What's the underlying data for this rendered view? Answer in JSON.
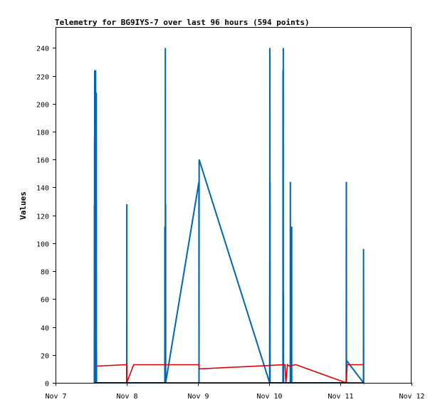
{
  "chart_data": {
    "type": "line",
    "title": "Telemetry for BG9IYS-7 over last 96 hours (594 points)",
    "xlabel": "",
    "ylabel": "Values",
    "xlim": [
      "2023-11-07",
      "2023-11-12"
    ],
    "ylim": [
      0,
      255
    ],
    "x_ticks": [
      "Nov 7",
      "Nov 8",
      "Nov 9",
      "Nov 10",
      "Nov 11",
      "Nov 12"
    ],
    "y_ticks": [
      0,
      20,
      40,
      60,
      80,
      100,
      120,
      140,
      160,
      180,
      200,
      220,
      240
    ],
    "grid": false,
    "legend": "none",
    "series": [
      {
        "color": "#0066b3",
        "points": [
          [
            "2023-11-07T13:05",
            0
          ],
          [
            "2023-11-07T13:06",
            128
          ],
          [
            "2023-11-07T13:07",
            0
          ],
          [
            "2023-11-07T13:09",
            176
          ],
          [
            "2023-11-07T13:10",
            0
          ],
          [
            "2023-11-07T13:12",
            224
          ],
          [
            "2023-11-07T13:13",
            0
          ],
          [
            "2023-11-07T13:15",
            160
          ],
          [
            "2023-11-07T13:16",
            0
          ],
          [
            "2023-11-07T13:19",
            192
          ],
          [
            "2023-11-07T13:20",
            0
          ],
          [
            "2023-11-07T13:23",
            208
          ],
          [
            "2023-11-07T13:24",
            0
          ],
          [
            "2023-11-07T13:27",
            176
          ],
          [
            "2023-11-07T13:28",
            0
          ],
          [
            "2023-11-07T13:31",
            224
          ],
          [
            "2023-11-07T13:32",
            0
          ],
          [
            "2023-11-07T13:35",
            80
          ],
          [
            "2023-11-07T13:36",
            0
          ],
          [
            "2023-11-07T13:38",
            28
          ],
          [
            "2023-11-07T13:39",
            0
          ],
          [
            "2023-11-07T13:41",
            144
          ],
          [
            "2023-11-07T13:42",
            0
          ],
          [
            "2023-11-07T13:45",
            208
          ],
          [
            "2023-11-07T13:46",
            0
          ],
          [
            "2023-11-07T13:48",
            24
          ],
          [
            "2023-11-07T13:49",
            0
          ],
          [
            "2023-11-08T00:00",
            0
          ],
          [
            "2023-11-08T00:01",
            128
          ],
          [
            "2023-11-08T00:02",
            0
          ],
          [
            "2023-11-08T12:50",
            0
          ],
          [
            "2023-11-08T12:51",
            112
          ],
          [
            "2023-11-08T12:52",
            0
          ],
          [
            "2023-11-08T13:00",
            0
          ],
          [
            "2023-11-08T13:01",
            240
          ],
          [
            "2023-11-08T13:02",
            0
          ],
          [
            "2023-11-08T13:05",
            0
          ],
          [
            "2023-11-08T13:06",
            128
          ],
          [
            "2023-11-08T13:07",
            0
          ],
          [
            "2023-11-09T00:20",
            144
          ],
          [
            "2023-11-09T00:22",
            0
          ],
          [
            "2023-11-09T00:24",
            160
          ],
          [
            "2023-11-10T00:10",
            0
          ],
          [
            "2023-11-10T00:11",
            64
          ],
          [
            "2023-11-10T00:12",
            0
          ],
          [
            "2023-11-10T00:14",
            240
          ],
          [
            "2023-11-10T00:15",
            0
          ],
          [
            "2023-11-10T00:18",
            144
          ],
          [
            "2023-11-10T00:19",
            0
          ],
          [
            "2023-11-10T04:40",
            0
          ],
          [
            "2023-11-10T04:41",
            224
          ],
          [
            "2023-11-10T04:42",
            0
          ],
          [
            "2023-11-10T04:46",
            240
          ],
          [
            "2023-11-10T04:47",
            0
          ],
          [
            "2023-11-10T04:50",
            64
          ],
          [
            "2023-11-10T04:51",
            0
          ],
          [
            "2023-11-10T07:08",
            0
          ],
          [
            "2023-11-10T07:09",
            144
          ],
          [
            "2023-11-10T07:10",
            0
          ],
          [
            "2023-11-10T07:25",
            0
          ],
          [
            "2023-11-10T07:26",
            96
          ],
          [
            "2023-11-10T07:27",
            0
          ],
          [
            "2023-11-10T07:35",
            0
          ],
          [
            "2023-11-10T07:36",
            112
          ],
          [
            "2023-11-10T07:37",
            0
          ],
          [
            "2023-11-11T02:00",
            0
          ],
          [
            "2023-11-11T02:01",
            144
          ],
          [
            "2023-11-11T02:02",
            0
          ],
          [
            "2023-11-11T02:03",
            144
          ],
          [
            "2023-11-11T02:04",
            0
          ],
          [
            "2023-11-11T02:05",
            16
          ],
          [
            "2023-11-11T07:48",
            0
          ],
          [
            "2023-11-11T07:50",
            96
          ],
          [
            "2023-11-11T07:52",
            0
          ]
        ]
      },
      {
        "color": "#e00000",
        "points": [
          [
            "2023-11-07T13:48",
            12
          ],
          [
            "2023-11-08T00:00",
            13
          ],
          [
            "2023-11-08T00:01",
            0
          ],
          [
            "2023-11-08T02:20",
            13
          ],
          [
            "2023-11-09T00:25",
            13
          ],
          [
            "2023-11-09T00:26",
            10
          ],
          [
            "2023-11-10T05:20",
            13
          ],
          [
            "2023-11-10T05:40",
            0
          ],
          [
            "2023-11-10T06:10",
            13
          ],
          [
            "2023-11-10T06:50",
            12
          ],
          [
            "2023-11-10T09:00",
            13
          ],
          [
            "2023-11-11T02:00",
            0
          ],
          [
            "2023-11-11T02:20",
            13
          ],
          [
            "2023-11-11T07:50",
            13
          ]
        ]
      },
      {
        "color": "#000000",
        "points": [
          [
            "2023-11-07T13:05",
            0
          ],
          [
            "2023-11-11T07:52",
            0
          ]
        ]
      }
    ]
  }
}
